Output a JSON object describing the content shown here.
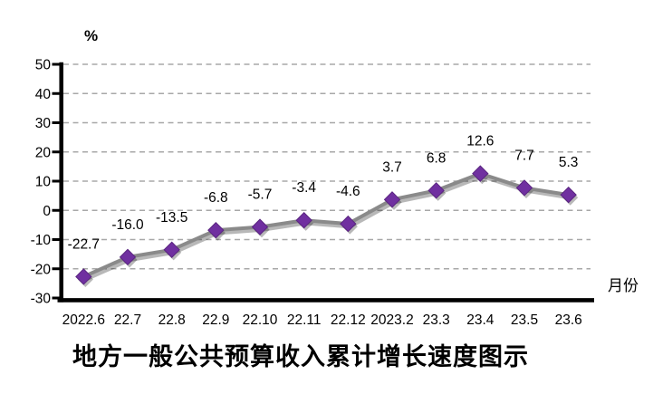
{
  "chart_data": {
    "type": "line",
    "title": "地方一般公共预算收入累计增长速度图示",
    "y_unit_label": "%",
    "x_axis_label": "月份",
    "categories": [
      "2022.6",
      "22.7",
      "22.8",
      "22.9",
      "22.10",
      "22.11",
      "22.12",
      "2023.2",
      "23.3",
      "23.4",
      "23.5",
      "23.6"
    ],
    "values": [
      -22.7,
      -16.0,
      -13.5,
      -6.8,
      -5.7,
      -3.4,
      -4.6,
      3.7,
      6.8,
      12.6,
      7.7,
      5.3
    ],
    "data_labels": [
      "-22.7",
      "-16.0",
      "-13.5",
      "-6.8",
      "-5.7",
      "-3.4",
      "-4.6",
      "3.7",
      "6.8",
      "12.6",
      "7.7",
      "5.3"
    ],
    "ylim": [
      -30,
      50
    ],
    "yticks": [
      50,
      40,
      30,
      20,
      10,
      0,
      -10,
      -20,
      -30
    ],
    "grid": true,
    "legend_position": "none",
    "marker_shape": "diamond",
    "colors": {
      "line": "#8A8A8A",
      "marker_fill": "#7030A0",
      "marker_stroke": "#5A2580",
      "grid": "#A8A8A8",
      "axis": "#000000",
      "text": "#000000",
      "shadow": "rgba(0,0,0,0.28)"
    }
  }
}
